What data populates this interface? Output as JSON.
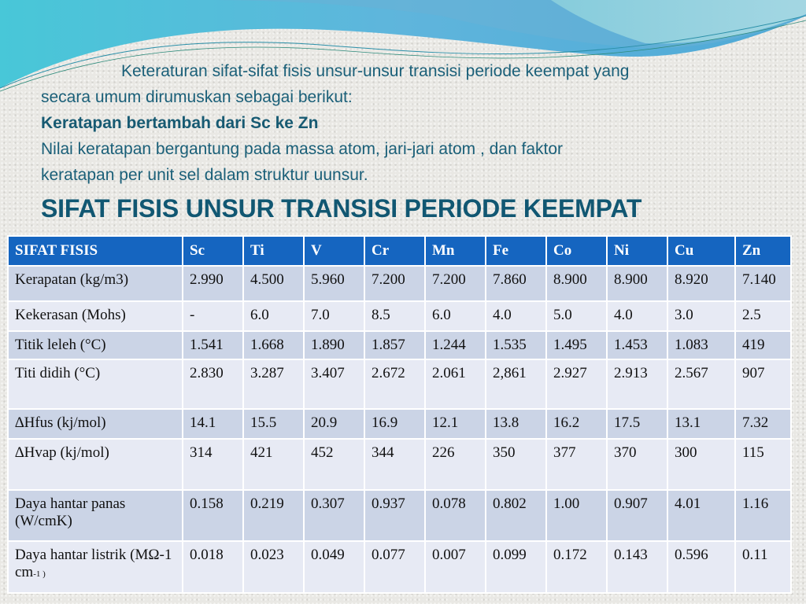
{
  "intro": {
    "line1": "Keteraturan sifat-sifat fisis unsur-unsur transisi periode keempat yang",
    "line2": "secara umum dirumuskan sebagai berikut:",
    "bold_line": "Keratapan bertambah dari Sc ke Zn",
    "line4": "Nilai keratapan bergantung pada massa atom, jari-jari atom , dan faktor",
    "line5": "keratapan per unit sel dalam struktur uunsur."
  },
  "title": "SIFAT FISIS UNSUR TRANSISI PERIODE KEEMPAT",
  "colors": {
    "header_bg": "#1565c0",
    "row_dark": "#cbd4e6",
    "row_light": "#e7eaf4",
    "text_teal": "#1a5f78"
  },
  "table": {
    "headers": [
      "SIFAT FISIS",
      "Sc",
      "Ti",
      "V",
      "Cr",
      "Mn",
      "Fe",
      "Co",
      "Ni",
      "Cu",
      "Zn"
    ],
    "rows": [
      {
        "label": "Kerapatan (kg/m3)",
        "values": [
          "2.990",
          "4.500",
          "5.960",
          "7.200",
          "7.200",
          "7.860",
          "8.900",
          "8.900",
          "8.920",
          "7.140"
        ]
      },
      {
        "label": "Kekerasan (Mohs)",
        "values": [
          "-",
          "6.0",
          "7.0",
          "8.5",
          "6.0",
          "4.0",
          "5.0",
          "4.0",
          "3.0",
          "2.5"
        ]
      },
      {
        "label": "Titik leleh (°C)",
        "values": [
          "1.541",
          "1.668",
          "1.890",
          "1.857",
          "1.244",
          "1.535",
          "1.495",
          "1.453",
          "1.083",
          "419"
        ]
      },
      {
        "label": "Titi didih (°C)",
        "values": [
          "2.830",
          "3.287",
          "3.407",
          "2.672",
          "2.061",
          "2,861",
          "2.927",
          "2.913",
          "2.567",
          "907"
        ]
      },
      {
        "label": "∆Hfus (kj/mol)",
        "values": [
          "14.1",
          "15.5",
          "20.9",
          "16.9",
          "12.1",
          "13.8",
          "16.2",
          "17.5",
          "13.1",
          "7.32"
        ]
      },
      {
        "label": "∆Hvap (kj/mol)",
        "values": [
          "314",
          "421",
          "452",
          "344",
          "226",
          "350",
          "377",
          "370",
          "300",
          "115"
        ]
      },
      {
        "label": "Daya hantar panas (W/cmK)",
        "values": [
          "0.158",
          "0.219",
          "0.307",
          "0.937",
          "0.078",
          "0.802",
          "1.00",
          "0.907",
          "4.01",
          "1.16"
        ]
      },
      {
        "label_main": "Daya hantar listrik (MΩ-1 cm",
        "label_sub": "-1 )",
        "values": [
          "0.018",
          "0.023",
          "0.049",
          "0.077",
          "0.007",
          "0.099",
          "0.172",
          "0.143",
          "0.596",
          "0.11"
        ]
      }
    ]
  }
}
